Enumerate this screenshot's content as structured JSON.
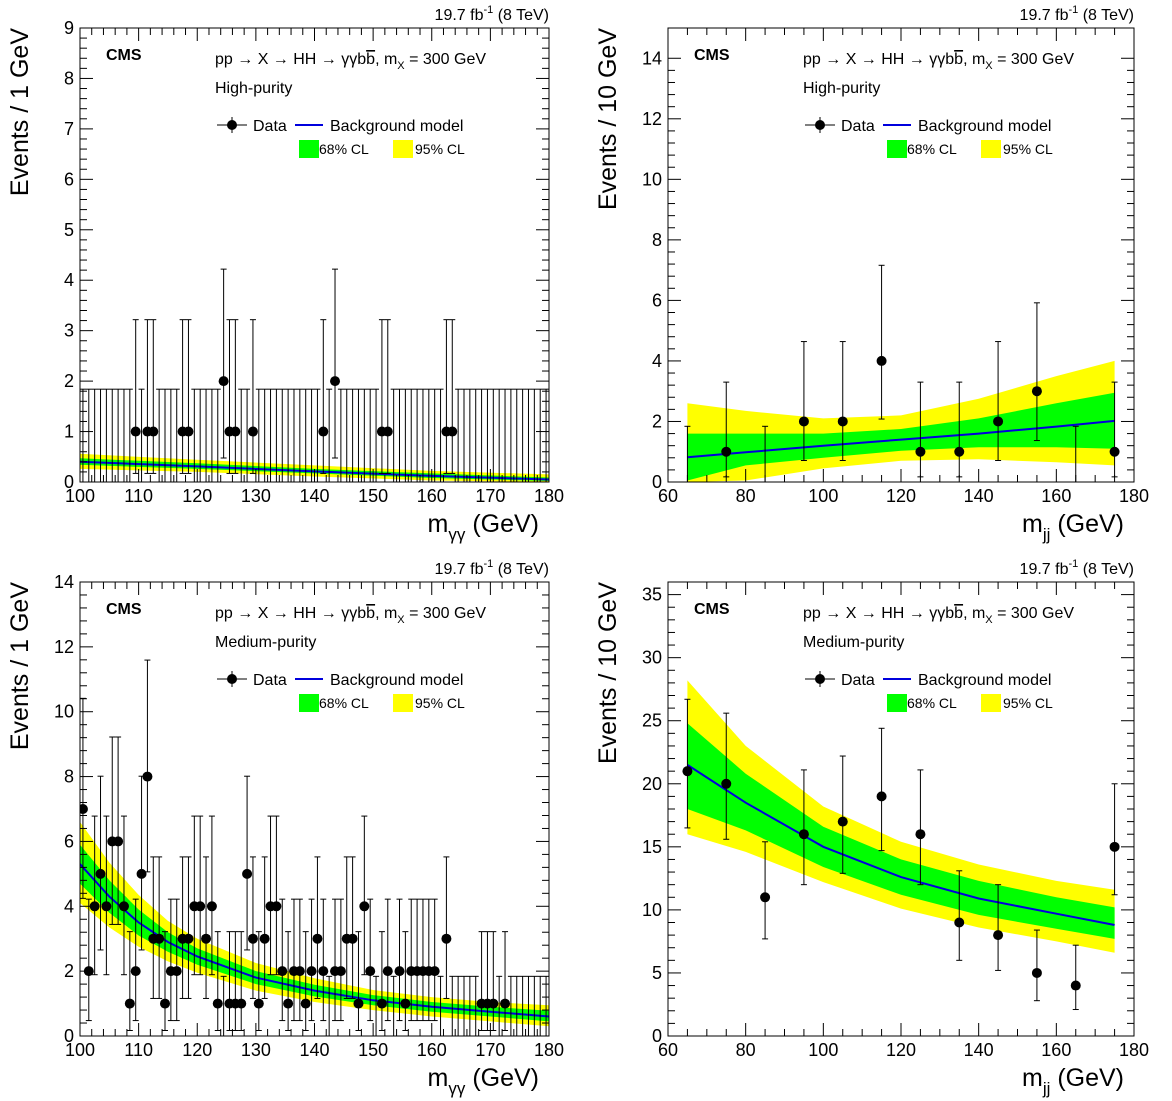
{
  "colors": {
    "band68": "#00ff00",
    "band95": "#ffff00",
    "curve": "#0000dd",
    "data": "#000000"
  },
  "chart_data": [
    {
      "type": "scatter",
      "lumi": "19.7 fb",
      "lumi_sup": "-1",
      "lumi_tail": " (8 TeV)",
      "cms": "CMS",
      "process": "pp → X → HH → γγb",
      "process_bbar": "b",
      "process_mx": ", m",
      "process_mx_sub": "X",
      "process_tail": " = 300 GeV",
      "category": "High-purity",
      "legend": {
        "data": "Data",
        "bkg": "Background model",
        "cl68": "68% CL",
        "cl95": "95% CL"
      },
      "ylabel": "Events / 1 GeV",
      "xlabel_main": "m",
      "xlabel_sub": "γγ",
      "xlabel_tail": " (GeV)",
      "xlim": [
        100,
        180
      ],
      "ylim": [
        0,
        9
      ],
      "xticks": [
        100,
        110,
        120,
        130,
        140,
        150,
        160,
        170,
        180
      ],
      "yticks": [
        0,
        1,
        2,
        3,
        4,
        5,
        6,
        7,
        8,
        9
      ],
      "bin_width": 1,
      "bins_start": 100,
      "bins_count": 80,
      "nonzero": {
        "109": 1,
        "111": 1,
        "112": 1,
        "117": 1,
        "118": 1,
        "124": 2,
        "125": 1,
        "126": 1,
        "129": 1,
        "141": 1,
        "143": 2,
        "151": 1,
        "152": 1,
        "162": 1,
        "163": 1
      },
      "zero_err_up": 1.84,
      "curve": {
        "x": [
          100,
          120,
          140,
          160,
          180
        ],
        "y": [
          0.4,
          0.31,
          0.21,
          0.12,
          0.05
        ]
      },
      "band68": {
        "x": [
          100,
          120,
          140,
          160,
          180
        ],
        "lo": [
          0.34,
          0.26,
          0.17,
          0.08,
          0.02
        ],
        "hi": [
          0.47,
          0.37,
          0.26,
          0.17,
          0.09
        ]
      },
      "band95": {
        "x": [
          100,
          120,
          140,
          160,
          180
        ],
        "lo": [
          0.26,
          0.2,
          0.11,
          0.03,
          0.0
        ],
        "hi": [
          0.56,
          0.44,
          0.33,
          0.22,
          0.15
        ]
      }
    },
    {
      "type": "scatter",
      "lumi": "19.7 fb",
      "lumi_sup": "-1",
      "lumi_tail": " (8 TeV)",
      "cms": "CMS",
      "process": "pp → X → HH → γγb",
      "process_bbar": "b",
      "process_mx": ", m",
      "process_mx_sub": "X",
      "process_tail": " = 300 GeV",
      "category": "High-purity",
      "legend": {
        "data": "Data",
        "bkg": "Background model",
        "cl68": "68% CL",
        "cl95": "95% CL"
      },
      "ylabel": "Events / 10 GeV",
      "xlabel_main": "m",
      "xlabel_sub": "jj",
      "xlabel_tail": " (GeV)",
      "xlim": [
        60,
        180
      ],
      "ylim": [
        0,
        15
      ],
      "xticks": [
        60,
        80,
        100,
        120,
        140,
        160,
        180
      ],
      "yticks": [
        0,
        2,
        4,
        6,
        8,
        10,
        12,
        14
      ],
      "points": [
        {
          "x": 65,
          "y": 0,
          "lo": 0,
          "hi": 1.84
        },
        {
          "x": 75,
          "y": 1,
          "lo": 0.17,
          "hi": 3.3
        },
        {
          "x": 85,
          "y": 0,
          "lo": 0,
          "hi": 1.84
        },
        {
          "x": 95,
          "y": 2,
          "lo": 0.71,
          "hi": 4.64
        },
        {
          "x": 105,
          "y": 2,
          "lo": 0.71,
          "hi": 4.64
        },
        {
          "x": 115,
          "y": 4,
          "lo": 2.08,
          "hi": 7.16
        },
        {
          "x": 125,
          "y": 1,
          "lo": 0.17,
          "hi": 3.3
        },
        {
          "x": 135,
          "y": 1,
          "lo": 0.17,
          "hi": 3.3
        },
        {
          "x": 145,
          "y": 2,
          "lo": 0.71,
          "hi": 4.64
        },
        {
          "x": 155,
          "y": 3,
          "lo": 1.37,
          "hi": 5.92
        },
        {
          "x": 165,
          "y": 0,
          "lo": 0,
          "hi": 1.84
        },
        {
          "x": 175,
          "y": 1,
          "lo": 0.17,
          "hi": 3.3
        }
      ],
      "curve": {
        "x": [
          65,
          80,
          100,
          120,
          140,
          160,
          175
        ],
        "y": [
          0.82,
          0.98,
          1.2,
          1.4,
          1.6,
          1.83,
          2.02
        ]
      },
      "band68": {
        "x": [
          65,
          80,
          100,
          120,
          140,
          160,
          175
        ],
        "lo": [
          0.05,
          0.55,
          0.8,
          1.03,
          1.15,
          1.15,
          1.1
        ],
        "hi": [
          1.6,
          1.6,
          1.6,
          1.75,
          2.1,
          2.6,
          2.95
        ]
      },
      "band95": {
        "x": [
          65,
          80,
          100,
          120,
          140,
          160,
          175
        ],
        "lo": [
          0.0,
          0.05,
          0.45,
          0.7,
          0.75,
          0.65,
          0.55
        ],
        "hi": [
          2.6,
          2.35,
          2.1,
          2.2,
          2.75,
          3.5,
          4.0
        ]
      }
    },
    {
      "type": "scatter",
      "lumi": "19.7 fb",
      "lumi_sup": "-1",
      "lumi_tail": " (8 TeV)",
      "cms": "CMS",
      "process": "pp → X → HH → γγb",
      "process_bbar": "b",
      "process_mx": ", m",
      "process_mx_sub": "X",
      "process_tail": " = 300 GeV",
      "category": "Medium-purity",
      "legend": {
        "data": "Data",
        "bkg": "Background model",
        "cl68": "68% CL",
        "cl95": "95% CL"
      },
      "ylabel": "Events / 1 GeV",
      "xlabel_main": "m",
      "xlabel_sub": "γγ",
      "xlabel_tail": " (GeV)",
      "xlim": [
        100,
        180
      ],
      "ylim": [
        0,
        14
      ],
      "xticks": [
        100,
        110,
        120,
        130,
        140,
        150,
        160,
        170,
        180
      ],
      "yticks": [
        0,
        2,
        4,
        6,
        8,
        10,
        12,
        14
      ],
      "bin_width": 1,
      "bins_start": 100,
      "bins_count": 80,
      "nonzero": {
        "100": 7,
        "101": 2,
        "102": 4,
        "103": 5,
        "104": 4,
        "105": 6,
        "106": 6,
        "107": 4,
        "108": 1,
        "109": 2,
        "110": 5,
        "111": 8,
        "112": 3,
        "113": 3,
        "114": 1,
        "115": 2,
        "116": 2,
        "117": 3,
        "118": 3,
        "119": 4,
        "120": 4,
        "121": 3,
        "122": 4,
        "123": 1,
        "125": 1,
        "126": 1,
        "127": 1,
        "128": 5,
        "129": 3,
        "130": 1,
        "131": 3,
        "132": 4,
        "133": 4,
        "134": 2,
        "135": 1,
        "136": 2,
        "137": 2,
        "138": 1,
        "139": 2,
        "140": 3,
        "141": 2,
        "143": 2,
        "144": 2,
        "145": 3,
        "146": 3,
        "147": 1,
        "148": 4,
        "149": 2,
        "151": 1,
        "152": 2,
        "154": 2,
        "155": 1,
        "156": 2,
        "157": 2,
        "158": 2,
        "159": 2,
        "160": 2,
        "162": 3,
        "168": 1,
        "169": 1,
        "170": 1,
        "172": 1
      },
      "zero_err_up": 1.84,
      "curve": {
        "x": [
          100,
          105,
          110,
          115,
          120,
          130,
          140,
          150,
          160,
          170,
          180
        ],
        "y": [
          5.3,
          4.3,
          3.5,
          2.9,
          2.45,
          1.8,
          1.4,
          1.1,
          0.9,
          0.75,
          0.6
        ]
      },
      "band68": {
        "x": [
          100,
          105,
          110,
          115,
          120,
          130,
          140,
          150,
          160,
          170,
          180
        ],
        "lo": [
          4.7,
          3.8,
          3.1,
          2.6,
          2.2,
          1.6,
          1.22,
          0.95,
          0.75,
          0.6,
          0.45
        ],
        "hi": [
          5.9,
          4.8,
          3.9,
          3.2,
          2.7,
          2.0,
          1.58,
          1.26,
          1.05,
          0.9,
          0.78
        ]
      },
      "band95": {
        "x": [
          100,
          105,
          110,
          115,
          120,
          130,
          140,
          150,
          160,
          170,
          180
        ],
        "lo": [
          4.1,
          3.35,
          2.75,
          2.3,
          1.95,
          1.4,
          1.05,
          0.8,
          0.6,
          0.45,
          0.3
        ],
        "hi": [
          6.6,
          5.35,
          4.35,
          3.55,
          3.0,
          2.25,
          1.78,
          1.42,
          1.2,
          1.05,
          0.95
        ]
      }
    },
    {
      "type": "scatter",
      "lumi": "19.7 fb",
      "lumi_sup": "-1",
      "lumi_tail": " (8 TeV)",
      "cms": "CMS",
      "process": "pp → X → HH → γγb",
      "process_bbar": "b",
      "process_mx": ", m",
      "process_mx_sub": "X",
      "process_tail": " = 300 GeV",
      "category": "Medium-purity",
      "legend": {
        "data": "Data",
        "bkg": "Background model",
        "cl68": "68% CL",
        "cl95": "95% CL"
      },
      "ylabel": "Events / 10 GeV",
      "xlabel_main": "m",
      "xlabel_sub": "jj",
      "xlabel_tail": " (GeV)",
      "xlim": [
        60,
        180
      ],
      "ylim": [
        0,
        36
      ],
      "xticks": [
        60,
        80,
        100,
        120,
        140,
        160,
        180
      ],
      "yticks": [
        0,
        5,
        10,
        15,
        20,
        25,
        30,
        35
      ],
      "points": [
        {
          "x": 65,
          "y": 21,
          "lo": 16.5,
          "hi": 26.7
        },
        {
          "x": 75,
          "y": 20,
          "lo": 15.6,
          "hi": 25.6
        },
        {
          "x": 85,
          "y": 11,
          "lo": 7.7,
          "hi": 15.4
        },
        {
          "x": 95,
          "y": 16,
          "lo": 12.0,
          "hi": 21.1
        },
        {
          "x": 105,
          "y": 17,
          "lo": 12.9,
          "hi": 22.2
        },
        {
          "x": 115,
          "y": 19,
          "lo": 14.7,
          "hi": 24.4
        },
        {
          "x": 125,
          "y": 16,
          "lo": 12.0,
          "hi": 21.1
        },
        {
          "x": 135,
          "y": 9,
          "lo": 6.0,
          "hi": 13.1
        },
        {
          "x": 145,
          "y": 8,
          "lo": 5.2,
          "hi": 12.0
        },
        {
          "x": 155,
          "y": 5,
          "lo": 2.8,
          "hi": 8.4
        },
        {
          "x": 165,
          "y": 4,
          "lo": 2.1,
          "hi": 7.2
        },
        {
          "x": 175,
          "y": 15,
          "lo": 11.2,
          "hi": 20.0
        }
      ],
      "curve": {
        "x": [
          65,
          80,
          100,
          120,
          140,
          160,
          175
        ],
        "y": [
          21.5,
          18.5,
          15.0,
          12.6,
          10.9,
          9.7,
          8.8
        ]
      },
      "band68": {
        "x": [
          65,
          80,
          100,
          120,
          140,
          160,
          175
        ],
        "lo": [
          18.0,
          16.3,
          13.4,
          11.2,
          9.6,
          8.5,
          7.7
        ],
        "hi": [
          24.8,
          20.8,
          16.6,
          14.0,
          12.3,
          11.0,
          10.2
        ]
      },
      "band95": {
        "x": [
          65,
          80,
          100,
          120,
          140,
          160,
          175
        ],
        "lo": [
          16.0,
          14.6,
          12.2,
          10.1,
          8.6,
          7.5,
          6.6
        ],
        "hi": [
          28.2,
          23.0,
          18.2,
          15.4,
          13.6,
          12.3,
          11.6
        ]
      }
    }
  ]
}
